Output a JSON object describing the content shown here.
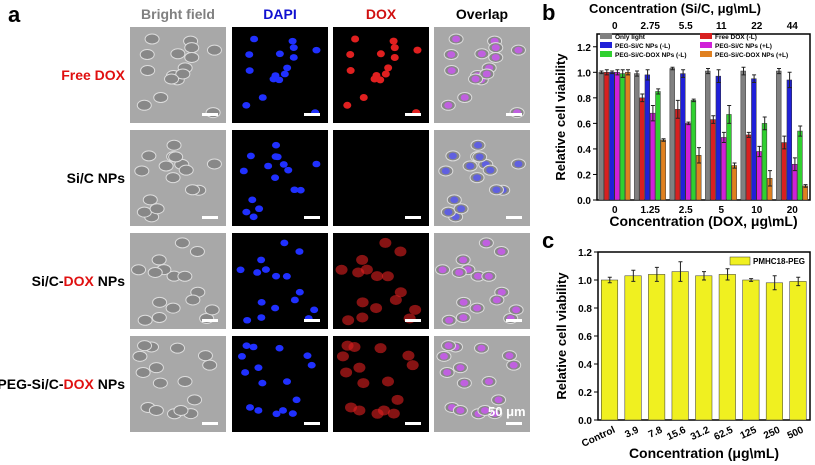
{
  "panel_a": {
    "label": "a",
    "columns": [
      "Bright field",
      "DAPI",
      "DOX",
      "Overlap"
    ],
    "column_colors": [
      "#808080",
      "#1010d0",
      "#d01010",
      "#000000"
    ],
    "rows": [
      {
        "prefix": "Free DOX",
        "dox": "",
        "suffix": "",
        "color": "#e01010"
      },
      {
        "prefix": "Si/C NPs",
        "dox": "",
        "suffix": "",
        "color": "#000000"
      },
      {
        "prefix": "Si/C-",
        "dox": "DOX",
        "suffix": " NPs",
        "color": "#000000"
      },
      {
        "prefix": "PEG-Si/C-",
        "dox": "DOX",
        "suffix": " NPs",
        "color": "#000000"
      }
    ],
    "scale_bar": "50 μm"
  },
  "chart_data": [
    {
      "panel": "b",
      "type": "bar",
      "title": "",
      "xlabel": "Concentration (DOX, μg\\mL)",
      "x2label": "Concentration (Si/C, μg\\mL)",
      "ylabel": "Relative cell viability",
      "ylim": [
        0,
        1.3
      ],
      "yticks": [
        "0.0",
        "0.2",
        "0.4",
        "0.6",
        "0.8",
        "1.0",
        "1.2"
      ],
      "categories": [
        "0",
        "1.25",
        "2.5",
        "5",
        "10",
        "20"
      ],
      "top_categories": [
        "0",
        "2.75",
        "5.5",
        "11",
        "22",
        "44"
      ],
      "legend": "top",
      "series": [
        {
          "name": "Only light",
          "color": "#808080",
          "values": [
            1.0,
            0.99,
            1.03,
            1.01,
            1.01,
            1.01
          ],
          "errors": [
            0.01,
            0.02,
            0.01,
            0.02,
            0.03,
            0.02
          ]
        },
        {
          "name": "Free DOX (-L)",
          "color": "#d82020",
          "values": [
            1.0,
            0.8,
            0.71,
            0.63,
            0.51,
            0.45
          ],
          "errors": [
            0.02,
            0.03,
            0.07,
            0.03,
            0.02,
            0.05
          ]
        },
        {
          "name": "PEG-Si/C NPs (-L)",
          "color": "#2020d8",
          "values": [
            1.0,
            0.98,
            0.99,
            0.97,
            0.95,
            0.94
          ],
          "errors": [
            0.01,
            0.04,
            0.03,
            0.05,
            0.03,
            0.06
          ]
        },
        {
          "name": "PEG-Si/C NPs (+L)",
          "color": "#d020d8",
          "values": [
            1.0,
            0.68,
            0.6,
            0.49,
            0.38,
            0.28
          ],
          "errors": [
            0.02,
            0.06,
            0.01,
            0.04,
            0.04,
            0.05
          ]
        },
        {
          "name": "PEG-Si/C-DOX NPs (-L)",
          "color": "#30d030",
          "values": [
            0.99,
            0.85,
            0.78,
            0.67,
            0.6,
            0.54
          ],
          "errors": [
            0.03,
            0.02,
            0.01,
            0.07,
            0.05,
            0.04
          ]
        },
        {
          "name": "PEG-Si/C-DOX NPs (+L)",
          "color": "#e08020",
          "values": [
            1.0,
            0.47,
            0.35,
            0.27,
            0.17,
            0.11
          ],
          "errors": [
            0.02,
            0.01,
            0.06,
            0.02,
            0.06,
            0.01
          ]
        }
      ]
    },
    {
      "panel": "c",
      "type": "bar",
      "title": "",
      "xlabel": "Concentration (μg\\mL)",
      "ylabel": "Relative cell viability",
      "ylim": [
        0,
        1.2
      ],
      "yticks": [
        "0.0",
        "0.2",
        "0.4",
        "0.6",
        "0.8",
        "1.0",
        "1.2"
      ],
      "categories": [
        "Control",
        "3.9",
        "7.8",
        "15.6",
        "31.2",
        "62.5",
        "125",
        "250",
        "500"
      ],
      "legend": "top-right",
      "series": [
        {
          "name": "PMHC18-PEG",
          "color": "#f0f020",
          "values": [
            1.0,
            1.03,
            1.04,
            1.06,
            1.03,
            1.04,
            1.0,
            0.98,
            0.99
          ],
          "errors": [
            0.02,
            0.04,
            0.05,
            0.07,
            0.03,
            0.04,
            0.01,
            0.05,
            0.03
          ]
        }
      ]
    }
  ]
}
